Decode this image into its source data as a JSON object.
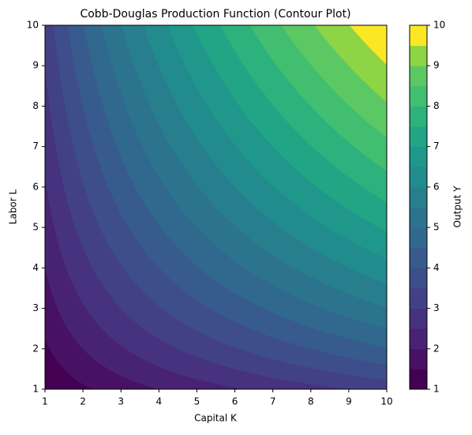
{
  "chart_data": {
    "type": "contour",
    "title": "Cobb-Douglas Production Function (Contour Plot)",
    "x_label": "Capital K",
    "y_label": "Labor L",
    "colorbar_label": "Output Y",
    "xlim": [
      1,
      10
    ],
    "ylim": [
      1,
      10
    ],
    "xticks": [
      1,
      2,
      3,
      4,
      5,
      6,
      7,
      8,
      9,
      10
    ],
    "yticks": [
      1,
      2,
      3,
      4,
      5,
      6,
      7,
      8,
      9,
      10
    ],
    "clim": [
      1,
      10
    ],
    "cticks": [
      1,
      2,
      3,
      4,
      5,
      6,
      7,
      8,
      9,
      10
    ],
    "levels": [
      1,
      1.5,
      2,
      2.5,
      3,
      3.5,
      4,
      4.5,
      5,
      5.5,
      6,
      6.5,
      7,
      7.5,
      8,
      8.5,
      9,
      9.5,
      10
    ],
    "colors": [
      "#440154",
      "#471164",
      "#482374",
      "#46327e",
      "#424186",
      "#3d4e8a",
      "#375b8d",
      "#31688e",
      "#2c738e",
      "#277f8e",
      "#228b8d",
      "#1f978b",
      "#21a585",
      "#2db27d",
      "#42be71",
      "#5cc863",
      "#8dd544",
      "#fde725"
    ]
  }
}
